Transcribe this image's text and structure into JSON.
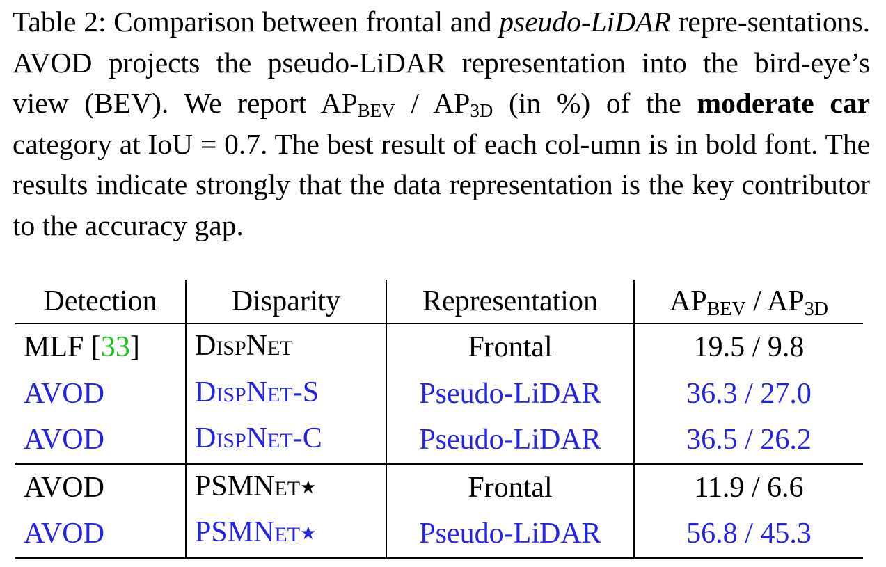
{
  "caption": {
    "label": "Table 2:",
    "t1": " Comparison between frontal and ",
    "t1_italic": "pseudo-LiDAR",
    "t2": " repre-sentations. AVOD projects the pseudo-LiDAR representation into the bird-eye’s view (BEV). We report AP",
    "sub_bev": "BEV",
    "t3": " / AP",
    "sub_3d": "3D",
    "t4": " (in %) of the ",
    "bold": "moderate car",
    "t5": " category at IoU = 0.7. The best result of each col-umn is in bold font. The results indicate strongly that the data representation is the key contributor to the accuracy gap."
  },
  "table": {
    "headers": {
      "detection": "Detection",
      "disparity": "Disparity",
      "representation": "Representation",
      "ap_prefix": "AP",
      "ap_sub1": "BEV",
      "ap_mid": " / AP",
      "ap_sub2": "3D"
    },
    "rows": [
      {
        "detection": "MLF [",
        "cite": "33",
        "detection_end": "]",
        "disp_D": "D",
        "disp_a": "ISP",
        "disp_N": "N",
        "disp_b": "ET",
        "disp_suffix": "",
        "representation": "Frontal",
        "ap": "19.5 / 9.8"
      },
      {
        "detection": "AVOD",
        "disp_D": "D",
        "disp_a": "ISP",
        "disp_N": "N",
        "disp_b": "ET",
        "disp_suffix": "-S",
        "representation": "Pseudo-LiDAR",
        "ap": "36.3 / 27.0"
      },
      {
        "detection": "AVOD",
        "disp_D": "D",
        "disp_a": "ISP",
        "disp_N": "N",
        "disp_b": "ET",
        "disp_suffix": "-C",
        "representation": "Pseudo-LiDAR",
        "ap": "36.5 / 26.2"
      },
      {
        "detection": "AVOD",
        "disp_PSM": "PSMN",
        "disp_b": "ET",
        "disp_star": "★",
        "representation": "Frontal",
        "ap": "11.9 / 6.6"
      },
      {
        "detection": "AVOD",
        "disp_PSM": "PSMN",
        "disp_b": "ET",
        "disp_star": "★",
        "representation": "Pseudo-LiDAR",
        "ap": "56.8 / 45.3"
      }
    ]
  },
  "colors": {
    "pseudo_lidar_rows": "#2323e6",
    "citation": "#1bc41b"
  }
}
